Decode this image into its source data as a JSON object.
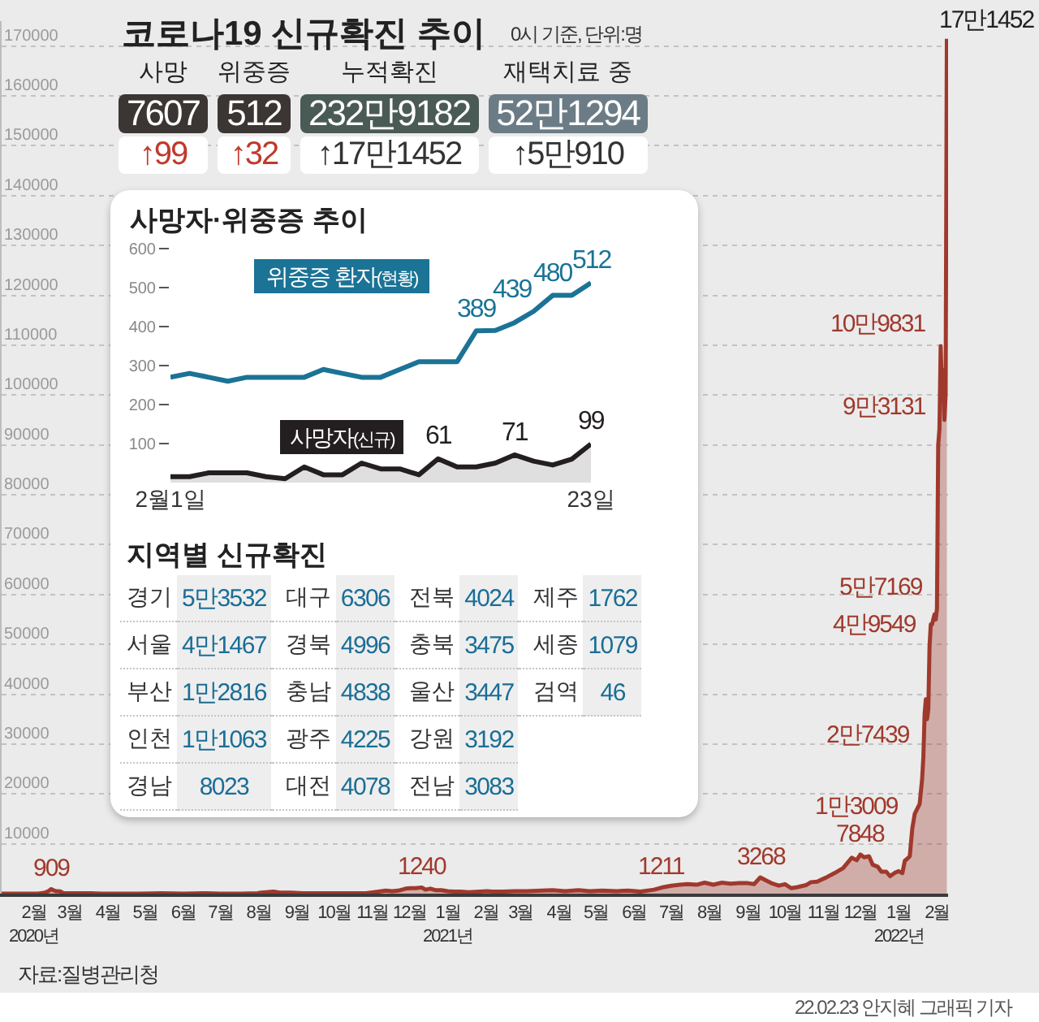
{
  "chart_data": [
    {
      "type": "area",
      "title": "코로나19 신규확진 추이",
      "subtitle": "0시 기준, 단위:명",
      "x": [
        "2020-01-20",
        "2020-02-01",
        "2020-02-18",
        "2020-02-21",
        "2020-02-24",
        "2020-02-27",
        "2020-02-29",
        "2020-03-02",
        "2020-03-04",
        "2020-03-06",
        "2020-03-08",
        "2020-03-10",
        "2020-03-15",
        "2020-03-20",
        "2020-03-25",
        "2020-04-01",
        "2020-04-10",
        "2020-04-20",
        "2020-05-01",
        "2020-05-10",
        "2020-05-28",
        "2020-06-15",
        "2020-07-01",
        "2020-07-15",
        "2020-08-01",
        "2020-08-14",
        "2020-08-17",
        "2020-08-27",
        "2020-09-01",
        "2020-09-10",
        "2020-09-20",
        "2020-10-01",
        "2020-10-15",
        "2020-11-01",
        "2020-11-10",
        "2020-11-20",
        "2020-11-26",
        "2020-12-01",
        "2020-12-06",
        "2020-12-12",
        "2020-12-16",
        "2020-12-20",
        "2020-12-25",
        "2020-12-28",
        "2021-01-01",
        "2021-01-05",
        "2021-01-10",
        "2021-01-15",
        "2021-01-20",
        "2021-01-25",
        "2021-02-01",
        "2021-02-10",
        "2021-02-16",
        "2021-02-20",
        "2021-03-01",
        "2021-03-10",
        "2021-03-20",
        "2021-04-01",
        "2021-04-10",
        "2021-04-20",
        "2021-05-01",
        "2021-05-10",
        "2021-05-20",
        "2021-06-01",
        "2021-06-10",
        "2021-06-20",
        "2021-07-01",
        "2021-07-07",
        "2021-07-15",
        "2021-07-22",
        "2021-07-28",
        "2021-08-05",
        "2021-08-11",
        "2021-08-18",
        "2021-08-25",
        "2021-09-01",
        "2021-09-08",
        "2021-09-15",
        "2021-09-20",
        "2021-09-25",
        "2021-09-30",
        "2021-10-05",
        "2021-10-10",
        "2021-10-15",
        "2021-10-20",
        "2021-10-25",
        "2021-11-01",
        "2021-11-05",
        "2021-11-10",
        "2021-11-17",
        "2021-11-24",
        "2021-12-01",
        "2021-12-08",
        "2021-12-12",
        "2021-12-15",
        "2021-12-18",
        "2021-12-22",
        "2021-12-25",
        "2021-12-29",
        "2022-01-01",
        "2022-01-05",
        "2022-01-08",
        "2022-01-12",
        "2022-01-15",
        "2022-01-18",
        "2022-01-20",
        "2022-01-22",
        "2022-01-24",
        "2022-01-26",
        "2022-01-28",
        "2022-01-30",
        "2022-02-01",
        "2022-02-03",
        "2022-02-04",
        "2022-02-05",
        "2022-02-06",
        "2022-02-07",
        "2022-02-08",
        "2022-02-09",
        "2022-02-10",
        "2022-02-11",
        "2022-02-12",
        "2022-02-13",
        "2022-02-14",
        "2022-02-15",
        "2022-02-16",
        "2022-02-17",
        "2022-02-18",
        "2022-02-19",
        "2022-02-20",
        "2022-02-21",
        "2022-02-22",
        "2022-02-23"
      ],
      "series": [
        {
          "color": "#a0392d",
          "values": [
            0,
            0,
            0,
            100,
            200,
            500,
            909,
            700,
            500,
            500,
            400,
            100,
            100,
            100,
            100,
            100,
            0,
            0,
            0,
            0,
            100,
            0,
            100,
            0,
            0,
            100,
            200,
            400,
            200,
            200,
            100,
            100,
            100,
            100,
            100,
            400,
            600,
            500,
            600,
            1000,
            1100,
            1100,
            1240,
            800,
            1000,
            700,
            700,
            500,
            400,
            400,
            300,
            400,
            500,
            400,
            400,
            500,
            500,
            600,
            700,
            500,
            700,
            500,
            600,
            500,
            600,
            400,
            800,
            1211,
            1600,
            1800,
            1900,
            1800,
            2200,
            1800,
            2200,
            2000,
            2100,
            2100,
            1900,
            3268,
            2600,
            2000,
            1600,
            1900,
            1100,
            1300,
            1700,
            2300,
            2400,
            3200,
            4100,
            5100,
            7200,
            6700,
            7848,
            7300,
            7500,
            5800,
            5400,
            4400,
            4400,
            3500,
            4200,
            4500,
            4100,
            6600,
            7000,
            7500,
            13009,
            16000,
            17000,
            18000,
            23000,
            27439,
            36000,
            39000,
            35000,
            37000,
            49549,
            54000,
            54000,
            55000,
            56000,
            55000,
            57169,
            90000,
            93131,
            109831,
            102000,
            105000,
            95000,
            100000,
            171452
          ],
          "value_labels": [
            null,
            null,
            null,
            null,
            null,
            null,
            "909",
            null,
            null,
            null,
            null,
            null,
            null,
            null,
            null,
            null,
            null,
            null,
            null,
            null,
            null,
            null,
            null,
            null,
            null,
            null,
            null,
            null,
            null,
            null,
            null,
            null,
            null,
            null,
            null,
            null,
            null,
            null,
            null,
            null,
            null,
            null,
            "1240",
            null,
            null,
            null,
            null,
            null,
            null,
            null,
            null,
            null,
            null,
            null,
            null,
            null,
            null,
            null,
            null,
            null,
            null,
            null,
            null,
            null,
            null,
            null,
            null,
            "1211",
            null,
            null,
            null,
            null,
            null,
            null,
            null,
            null,
            null,
            null,
            null,
            "3268",
            null,
            null,
            null,
            null,
            null,
            null,
            null,
            null,
            null,
            null,
            null,
            null,
            null,
            null,
            "7848",
            null,
            null,
            null,
            null,
            null,
            null,
            null,
            null,
            null,
            null,
            null,
            null,
            null,
            null,
            null,
            null,
            null,
            null,
            null,
            null,
            null,
            null,
            null,
            null,
            null,
            null,
            null,
            null,
            null,
            null,
            null,
            null,
            null,
            null,
            null,
            null,
            null,
            null
          ]
        }
      ],
      "xlim": [
        "2020-01-20",
        "2022-02-24"
      ],
      "xticks": [
        {
          "value": "2020-02-15",
          "label": "2월\n2020년"
        },
        {
          "value": "2020-03-15",
          "label": "3월"
        },
        {
          "value": "2020-04-15",
          "label": "4월"
        },
        {
          "value": "2020-05-15",
          "label": "5월"
        },
        {
          "value": "2020-06-15",
          "label": "6월"
        },
        {
          "value": "2020-07-15",
          "label": "7월"
        },
        {
          "value": "2020-08-15",
          "label": "8월"
        },
        {
          "value": "2020-09-15",
          "label": "9월"
        },
        {
          "value": "2020-10-15",
          "label": "10월"
        },
        {
          "value": "2020-11-15",
          "label": "11월"
        },
        {
          "value": "2020-12-15",
          "label": "12월"
        },
        {
          "value": "2021-01-15",
          "label": "1월\n2021년"
        },
        {
          "value": "2021-02-15",
          "label": "2월"
        },
        {
          "value": "2021-03-15",
          "label": "3월"
        },
        {
          "value": "2021-04-15",
          "label": "4월"
        },
        {
          "value": "2021-05-15",
          "label": "5월"
        },
        {
          "value": "2021-06-15",
          "label": "6월"
        },
        {
          "value": "2021-07-15",
          "label": "7월"
        },
        {
          "value": "2021-08-15",
          "label": "8월"
        },
        {
          "value": "2021-09-15",
          "label": "9월"
        },
        {
          "value": "2021-10-15",
          "label": "10월"
        },
        {
          "value": "2021-11-15",
          "label": "11월"
        },
        {
          "value": "2021-12-15",
          "label": "12월"
        },
        {
          "value": "2022-01-15",
          "label": "1월\n2022년"
        },
        {
          "value": "2022-02-15",
          "label": "2월"
        }
      ],
      "ylim": [
        0,
        175000
      ],
      "yticks": [
        10000,
        20000,
        30000,
        40000,
        50000,
        60000,
        70000,
        80000,
        90000,
        100000,
        110000,
        120000,
        130000,
        140000,
        150000,
        160000,
        170000
      ],
      "grid": "y",
      "annotations": [
        "자료:질병관리청",
        "22.02.23 안지혜 그래픽 기자",
        {
          "text": "1만3009",
          "x": "2022-01-26",
          "y": 13009
        },
        {
          "text": "2만7439",
          "x": "2022-02-04",
          "y": 27439
        },
        {
          "text": "4만9549",
          "x": "2022-02-09",
          "y": 49549
        },
        {
          "text": "5만7169",
          "x": "2022-02-15",
          "y": 57169
        },
        {
          "text": "9만3131",
          "x": "2022-02-17",
          "y": 93131
        },
        {
          "text": "10만9831",
          "x": "2022-02-18",
          "y": 109831
        },
        {
          "text": "17만1452",
          "x": "2022-02-23",
          "y": 171452
        }
      ]
    },
    {
      "type": "other",
      "categories": [
        "사망",
        "위중증",
        "누적확진",
        "재택치료 중"
      ],
      "colors": [
        "#3b3634",
        "#3b3634",
        "#4a5a55",
        "#6c7c86",
        "#c0392b",
        "#c0392b",
        "#333333",
        "#333333"
      ],
      "annotations": [
        "7607",
        "512",
        "232만9182",
        "52만1294",
        "↑99",
        "↑32",
        "↑17만1452",
        "↑5만910"
      ]
    },
    {
      "type": "line",
      "title": "사망자·위중증 추이",
      "x": [
        "2022-02-01",
        "2022-02-02",
        "2022-02-03",
        "2022-02-04",
        "2022-02-05",
        "2022-02-06",
        "2022-02-07",
        "2022-02-08",
        "2022-02-09",
        "2022-02-10",
        "2022-02-11",
        "2022-02-12",
        "2022-02-13",
        "2022-02-14",
        "2022-02-15",
        "2022-02-16",
        "2022-02-17",
        "2022-02-18",
        "2022-02-19",
        "2022-02-20",
        "2022-02-21",
        "2022-02-22",
        "2022-02-23"
      ],
      "series": [
        {
          "name": "위중증 환자(현황)",
          "color": "#1b7396",
          "values": [
            270,
            280,
            270,
            260,
            270,
            270,
            270,
            270,
            290,
            280,
            270,
            270,
            290,
            310,
            310,
            310,
            389,
            390,
            410,
            439,
            480,
            480,
            512
          ],
          "value_labels": [
            null,
            null,
            null,
            null,
            null,
            null,
            null,
            null,
            null,
            null,
            null,
            null,
            null,
            null,
            null,
            null,
            "389",
            null,
            null,
            "439",
            "480",
            null,
            "512"
          ]
        },
        {
          "name": "사망자(신규)",
          "type": "area",
          "color": "#231f20",
          "values": [
            15,
            15,
            25,
            25,
            25,
            15,
            10,
            40,
            20,
            20,
            50,
            35,
            35,
            20,
            61,
            40,
            40,
            50,
            71,
            55,
            45,
            60,
            99
          ],
          "value_labels": [
            null,
            null,
            null,
            null,
            null,
            null,
            null,
            null,
            null,
            null,
            null,
            null,
            null,
            null,
            "61",
            null,
            null,
            null,
            "71",
            null,
            null,
            null,
            "99"
          ]
        }
      ],
      "xlim": [
        "2022-02-01",
        "2022-02-23"
      ],
      "xticks": [
        {
          "value": "2022-02-01",
          "label": "2월1일"
        },
        {
          "value": "2022-02-23",
          "label": "23일"
        }
      ],
      "ylim": [
        0,
        600
      ],
      "yticks": [
        100,
        200,
        300,
        400,
        500,
        600
      ]
    },
    {
      "type": "other",
      "title": "지역별 신규확진",
      "color": "#1a6e96",
      "categories": [
        "경기",
        "서울",
        "부산",
        "인천",
        "경남",
        "대구",
        "경북",
        "충남",
        "광주",
        "대전",
        "전북",
        "충북",
        "울산",
        "강원",
        "전남",
        "제주",
        "세종",
        "검역"
      ],
      "annotations": [
        "5만3532",
        "4만1467",
        "1만2816",
        "1만1063",
        "8023",
        "6306",
        "4996",
        "4838",
        "4225",
        "4078",
        "4024",
        "3475",
        "3447",
        "3192",
        "3083",
        "1762",
        "1079",
        "46"
      ]
    }
  ]
}
